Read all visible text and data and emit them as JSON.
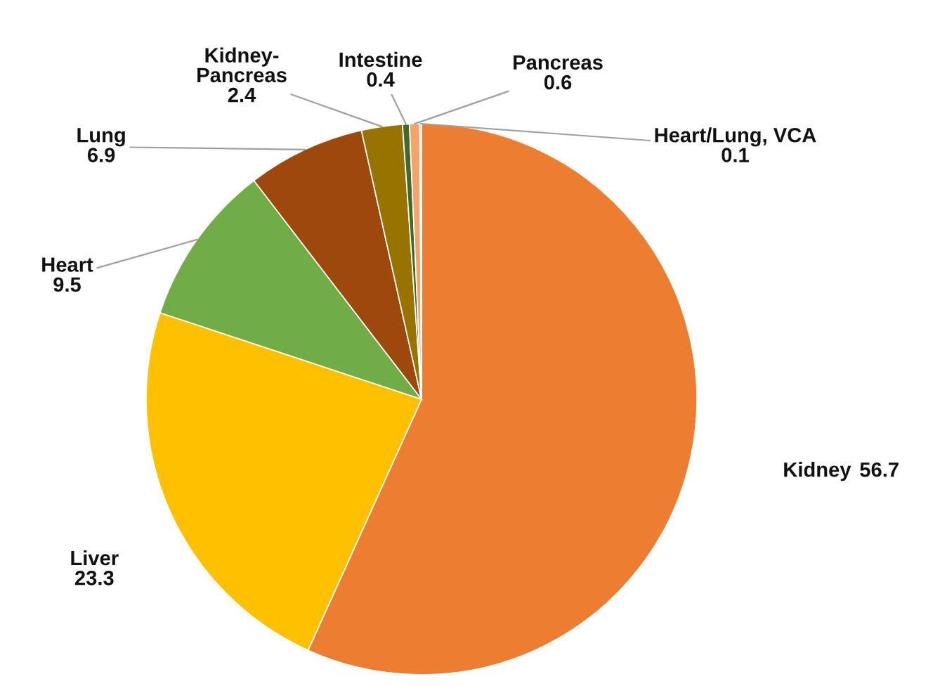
{
  "chart_data": {
    "type": "pie",
    "categories": [
      "Kidney",
      "Liver",
      "Heart",
      "Lung",
      "Kidney-Pancreas",
      "Intestine",
      "Pancreas",
      "Heart/Lung, VCA"
    ],
    "values": [
      56.7,
      23.3,
      9.5,
      6.9,
      2.4,
      0.4,
      0.6,
      0.1
    ],
    "colors": [
      "#ed7d31",
      "#ffc000",
      "#70ad47",
      "#9e480e",
      "#997300",
      "#43682b",
      "#f4a46a",
      "#f8cbad"
    ],
    "data_labels": true
  }
}
